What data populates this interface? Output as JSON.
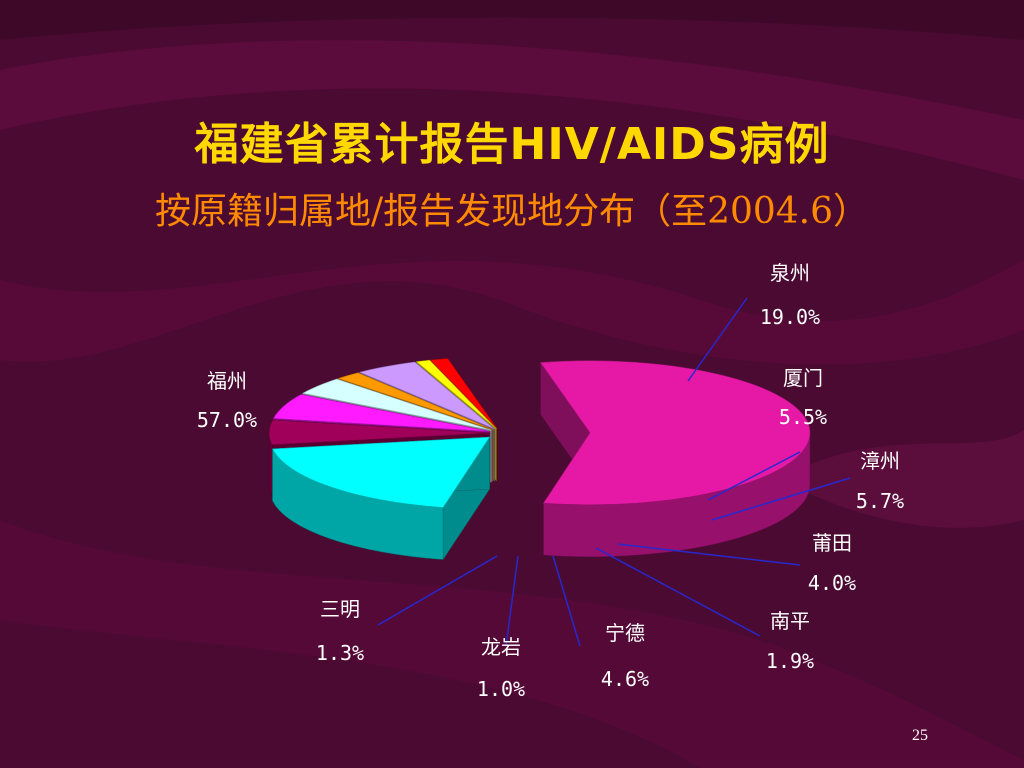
{
  "slide": {
    "title": "福建省累计报告HIV/AIDS病例",
    "subtitle": "按原籍归属地/报告发现地分布（至2004.6）",
    "page_number": "25"
  },
  "chart_data": {
    "type": "pie",
    "categories": [
      "福州",
      "泉州",
      "厦门",
      "漳州",
      "莆田",
      "南平",
      "宁德",
      "龙岩",
      "三明"
    ],
    "values": [
      57.0,
      19.0,
      5.5,
      5.7,
      4.0,
      1.9,
      4.6,
      1.0,
      1.3
    ],
    "value_labels": [
      "57.0%",
      "19.0%",
      "5.5%",
      "5.7%",
      "4.0%",
      "1.9%",
      "4.6%",
      "1.0%",
      "1.3%"
    ],
    "colors": [
      "#e619a6",
      "#00ffff",
      "#a0005a",
      "#ff1aff",
      "#d6ffff",
      "#ff9900",
      "#cc99ff",
      "#ffff00",
      "#ff0000"
    ],
    "style": "3d-exploded",
    "leader_line_color": "#2828d0"
  }
}
